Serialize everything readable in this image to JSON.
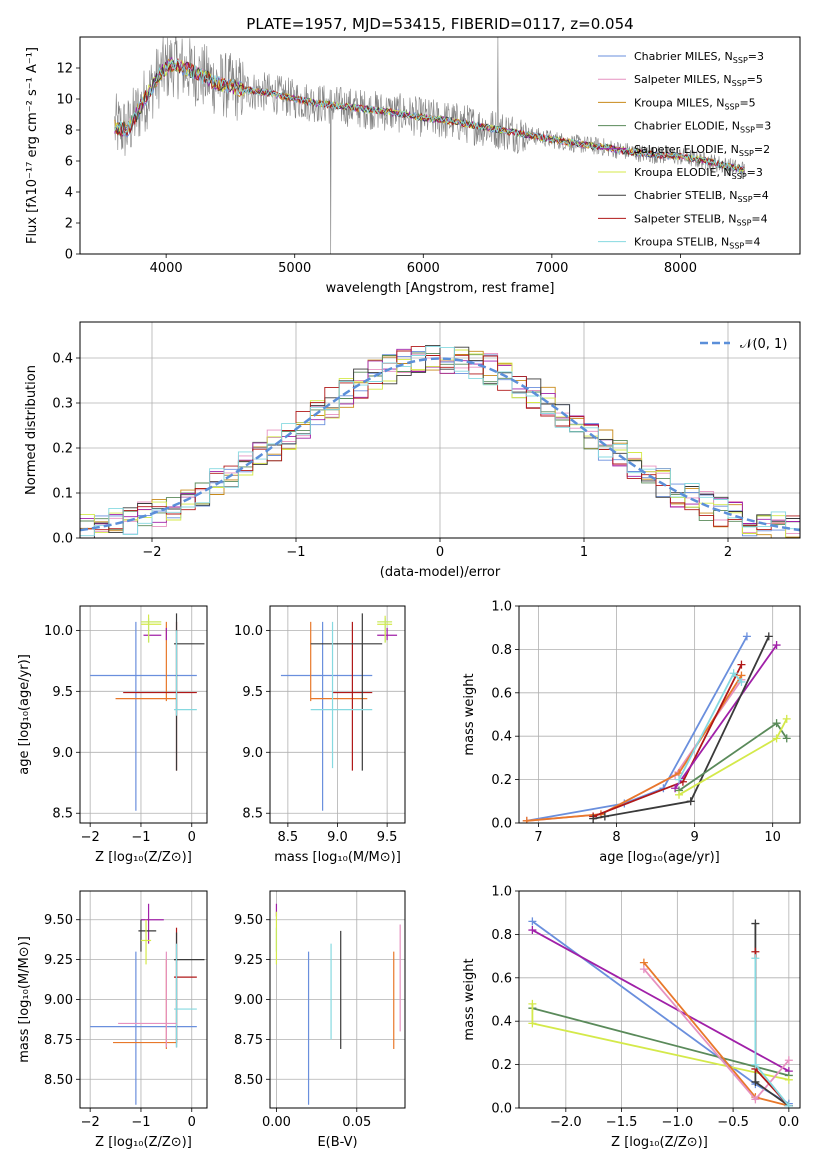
{
  "figure": {
    "title": "PLATE=1957, MJD=53415, FIBERID=0117, z=0.054"
  },
  "colors": {
    "data": "#808080",
    "series": [
      "#6a8fdd",
      "#e691c0",
      "#c88a1a",
      "#5a8a5a",
      "#a020a8",
      "#d4e94a",
      "#3a3a3a",
      "#b01818",
      "#86d9e0"
    ],
    "extra": [
      "#e8782a",
      "#c8e860",
      "#606060"
    ]
  },
  "models": [
    {
      "name": "Chabrier MILES",
      "nssp": "3"
    },
    {
      "name": "Salpeter MILES",
      "nssp": "5"
    },
    {
      "name": "Kroupa MILES",
      "nssp": "5"
    },
    {
      "name": "Chabrier ELODIE",
      "nssp": "3"
    },
    {
      "name": "Salpeter ELODIE",
      "nssp": "2"
    },
    {
      "name": "Kroupa ELODIE",
      "nssp": "3"
    },
    {
      "name": "Chabrier STELIB",
      "nssp": "4"
    },
    {
      "name": "Salpeter STELIB",
      "nssp": "4"
    },
    {
      "name": "Kroupa STELIB",
      "nssp": "4"
    }
  ],
  "chart_data": [
    {
      "id": "spectrum",
      "type": "line",
      "xlabel": "wavelength [Angstrom, rest frame]",
      "ylabel": "Flux [fλ10⁻¹⁷ erg cm⁻² s⁻¹ A⁻¹]",
      "xlim": [
        3330,
        8930
      ],
      "ylim": [
        0,
        14
      ],
      "xticks": [
        "4000",
        "5000",
        "6000",
        "7000",
        "8000"
      ],
      "xtick_values": [
        4000,
        5000,
        6000,
        7000,
        8000
      ],
      "yticks": [
        "0",
        "2",
        "4",
        "6",
        "8",
        "10",
        "12"
      ],
      "ytick_values": [
        0,
        2,
        4,
        6,
        8,
        10,
        12
      ],
      "continuum": {
        "x": [
          3600,
          3700,
          3850,
          3950,
          4050,
          4200,
          4400,
          4600,
          4800,
          5000,
          5200,
          5400,
          5600,
          5800,
          6000,
          6200,
          6400,
          6600,
          6800,
          7000,
          7200,
          7400,
          7600,
          7800,
          8000,
          8200,
          8400,
          8500
        ],
        "y": [
          8.2,
          8.0,
          10.2,
          11.6,
          12.3,
          11.8,
          11.0,
          10.6,
          10.4,
          10.0,
          9.7,
          9.5,
          9.3,
          9.1,
          8.8,
          8.6,
          8.3,
          8.0,
          7.7,
          7.4,
          7.1,
          6.9,
          6.6,
          6.4,
          6.3,
          6.0,
          5.6,
          5.4
        ]
      },
      "legend": "top-right"
    },
    {
      "id": "residuals",
      "type": "bar",
      "xlabel": "(data-model)/error",
      "ylabel": "Normed distribution",
      "xlim": [
        -2.5,
        2.5
      ],
      "ylim": [
        0,
        0.48
      ],
      "xticks": [
        "−2",
        "−1",
        "0",
        "1",
        "2"
      ],
      "xtick_values": [
        -2,
        -1,
        0,
        1,
        2
      ],
      "yticks": [
        "0.0",
        "0.1",
        "0.2",
        "0.3",
        "0.4"
      ],
      "ytick_values": [
        0,
        0.1,
        0.2,
        0.3,
        0.4
      ],
      "bin_width": 0.1,
      "gaussian_label": "𝒩(0, 1)",
      "legend": "top-right"
    },
    {
      "id": "age-Z",
      "type": "scatter",
      "xlabel": "Z [log₁₀(Z/Z⊙)]",
      "ylabel": "age  [log₁₀(age/yr)]",
      "xlim": [
        -2.2,
        0.3
      ],
      "ylim": [
        8.42,
        10.2
      ],
      "xticks": [
        "−2",
        "−1",
        "0"
      ],
      "xtick_values": [
        -2,
        -1,
        0
      ],
      "yticks": [
        "8.5",
        "9.0",
        "9.5",
        "10.0"
      ],
      "ytick_values": [
        8.5,
        9.0,
        9.5,
        10.0
      ],
      "points": [
        {
          "c": 0,
          "x": -1.1,
          "xlo": -2.0,
          "xhi": 0.1,
          "y": 9.63,
          "ylo": 8.52,
          "yhi": 10.07
        },
        {
          "c": 9,
          "x": -0.5,
          "xlo": -1.5,
          "xhi": -0.3,
          "y": 9.44,
          "ylo": 9.42,
          "yhi": 10.07
        },
        {
          "c": 7,
          "x": -0.3,
          "xlo": -1.35,
          "xhi": 0.1,
          "y": 9.49,
          "ylo": 8.85,
          "yhi": 10.07
        },
        {
          "c": 6,
          "x": -0.3,
          "xlo": -0.35,
          "xhi": 0.25,
          "y": 9.89,
          "ylo": 8.85,
          "yhi": 10.14
        },
        {
          "c": 8,
          "x": -0.3,
          "xlo": -0.35,
          "xhi": 0.1,
          "y": 9.35,
          "ylo": 9.3,
          "yhi": 10.0
        },
        {
          "c": 4,
          "x": -0.5,
          "xlo": -0.95,
          "xhi": -0.6,
          "y": 9.96,
          "ylo": 9.92,
          "yhi": 10.02
        },
        {
          "c": 5,
          "x": -0.85,
          "xlo": -1.0,
          "xhi": -0.6,
          "y": 10.05,
          "ylo": 9.9,
          "yhi": 10.13
        },
        {
          "c": 10,
          "x": -0.85,
          "xlo": -1.0,
          "xhi": -0.6,
          "y": 10.07,
          "ylo": 9.9,
          "yhi": 10.1
        }
      ]
    },
    {
      "id": "age-mass",
      "type": "scatter",
      "xlabel": "mass [log₁₀(M/M⊙)]",
      "ylabel": "",
      "xlim": [
        8.32,
        9.68
      ],
      "ylim": [
        8.42,
        10.2
      ],
      "xticks": [
        "8.5",
        "9.0",
        "9.5"
      ],
      "xtick_values": [
        8.5,
        9.0,
        9.5
      ],
      "yticks": [
        "8.5",
        "9.0",
        "9.5",
        "10.0"
      ],
      "ytick_values": [
        8.5,
        9.0,
        9.5,
        10.0
      ],
      "points": [
        {
          "c": 0,
          "x": 8.85,
          "xlo": 8.43,
          "xhi": 9.35,
          "y": 9.63,
          "ylo": 8.52,
          "yhi": 10.07
        },
        {
          "c": 9,
          "x": 8.73,
          "xlo": 8.73,
          "xhi": 9.3,
          "y": 9.44,
          "ylo": 9.42,
          "yhi": 10.07
        },
        {
          "c": 7,
          "x": 9.15,
          "xlo": 8.95,
          "xhi": 9.35,
          "y": 9.49,
          "ylo": 8.85,
          "yhi": 10.07
        },
        {
          "c": 6,
          "x": 9.25,
          "xlo": 8.73,
          "xhi": 9.45,
          "y": 9.89,
          "ylo": 8.85,
          "yhi": 10.14
        },
        {
          "c": 8,
          "x": 8.95,
          "xlo": 8.73,
          "xhi": 9.35,
          "y": 9.35,
          "ylo": 8.87,
          "yhi": 10.07
        },
        {
          "c": 4,
          "x": 9.5,
          "xlo": 9.4,
          "xhi": 9.6,
          "y": 9.96,
          "ylo": 9.92,
          "yhi": 10.02
        },
        {
          "c": 5,
          "x": 9.48,
          "xlo": 9.4,
          "xhi": 9.55,
          "y": 10.05,
          "ylo": 9.9,
          "yhi": 10.12
        },
        {
          "c": 10,
          "x": 9.48,
          "xlo": 9.4,
          "xhi": 9.55,
          "y": 10.07,
          "ylo": 9.9,
          "yhi": 10.1
        }
      ]
    },
    {
      "id": "mass-Z",
      "type": "scatter",
      "xlabel": "Z [log₁₀(Z/Z⊙)]",
      "ylabel": "mass [log₁₀(M/M⊙)]",
      "xlim": [
        -2.2,
        0.3
      ],
      "ylim": [
        8.32,
        9.68
      ],
      "xticks": [
        "−2",
        "−1",
        "0"
      ],
      "xtick_values": [
        -2,
        -1,
        0
      ],
      "yticks": [
        "8.50",
        "8.75",
        "9.00",
        "9.25",
        "9.50"
      ],
      "ytick_values": [
        8.5,
        8.75,
        9.0,
        9.25,
        9.5
      ],
      "points": [
        {
          "c": 0,
          "x": -1.1,
          "xlo": -2.0,
          "xhi": 0.1,
          "y": 8.83,
          "ylo": 8.34,
          "yhi": 9.3
        },
        {
          "c": 9,
          "x": -0.5,
          "xlo": -1.55,
          "xhi": -0.3,
          "y": 8.73,
          "ylo": 8.69,
          "yhi": 9.25
        },
        {
          "c": 7,
          "x": -0.3,
          "xlo": -0.35,
          "xhi": 0.1,
          "y": 9.14,
          "ylo": 8.73,
          "yhi": 9.45
        },
        {
          "c": 6,
          "x": -0.3,
          "xlo": -0.35,
          "xhi": 0.25,
          "y": 9.25,
          "ylo": 8.7,
          "yhi": 9.42
        },
        {
          "c": 8,
          "x": -0.3,
          "xlo": -0.35,
          "xhi": 0.1,
          "y": 8.94,
          "ylo": 8.7,
          "yhi": 9.35
        },
        {
          "c": 1,
          "x": -0.5,
          "xlo": -1.45,
          "xhi": -0.3,
          "y": 8.85,
          "ylo": 8.7,
          "yhi": 9.3
        },
        {
          "c": 4,
          "x": -0.85,
          "xlo": -1.0,
          "xhi": -0.55,
          "y": 9.5,
          "ylo": 9.35,
          "yhi": 9.6
        },
        {
          "c": 6,
          "x": -1.0,
          "xlo": -1.05,
          "xhi": -0.7,
          "y": 9.43,
          "ylo": 9.3,
          "yhi": 9.5
        },
        {
          "c": 5,
          "x": -0.9,
          "xlo": -1.0,
          "xhi": -0.8,
          "y": 9.37,
          "ylo": 9.22,
          "yhi": 9.5
        }
      ]
    },
    {
      "id": "mass-ebv",
      "type": "scatter",
      "xlabel": "E(B-V)",
      "ylabel": "",
      "xlim": [
        -0.004,
        0.08
      ],
      "ylim": [
        8.32,
        9.68
      ],
      "xticks": [
        "0.00",
        "0.05"
      ],
      "xtick_values": [
        0,
        0.05
      ],
      "yticks": [
        "8.50",
        "8.75",
        "9.00",
        "9.25",
        "9.50"
      ],
      "ytick_values": [
        8.5,
        8.75,
        9.0,
        9.25,
        9.5
      ],
      "points": [
        {
          "c": 0,
          "x": 0.02,
          "ylo": 8.34,
          "yhi": 9.3
        },
        {
          "c": 8,
          "x": 0.034,
          "ylo": 8.75,
          "yhi": 9.35
        },
        {
          "c": 6,
          "x": 0.04,
          "ylo": 8.69,
          "yhi": 9.43
        },
        {
          "c": 9,
          "x": 0.073,
          "ylo": 8.69,
          "yhi": 9.3
        },
        {
          "c": 1,
          "x": 0.077,
          "ylo": 8.8,
          "yhi": 9.47
        },
        {
          "c": 4,
          "x": 0.0,
          "ylo": 9.52,
          "yhi": 9.6
        },
        {
          "c": 5,
          "x": 0.0,
          "ylo": 9.22,
          "yhi": 9.55
        },
        {
          "c": 10,
          "x": 0.0,
          "ylo": 9.3,
          "yhi": 9.45
        }
      ]
    },
    {
      "id": "weight-age",
      "type": "line",
      "xlabel": "age  [log₁₀(age/yr)]",
      "ylabel": "mass weight",
      "xlim": [
        6.75,
        10.35
      ],
      "ylim": [
        0,
        1.0
      ],
      "xticks": [
        "7",
        "8",
        "9",
        "10"
      ],
      "xtick_values": [
        7,
        8,
        9,
        10
      ],
      "yticks": [
        "0.0",
        "0.2",
        "0.4",
        "0.6",
        "0.8",
        "1.0"
      ],
      "ytick_values": [
        0,
        0.2,
        0.4,
        0.6,
        0.8,
        1.0
      ],
      "series": [
        {
          "c": 0,
          "x": [
            6.85,
            8.1,
            8.6,
            9.67
          ],
          "y": [
            0.01,
            0.09,
            0.16,
            0.86
          ]
        },
        {
          "c": 1,
          "x": [
            6.85,
            7.8,
            8.75,
            9.6
          ],
          "y": [
            0.01,
            0.04,
            0.22,
            0.66
          ]
        },
        {
          "c": 9,
          "x": [
            6.85,
            7.8,
            8.8,
            9.6
          ],
          "y": [
            0.01,
            0.04,
            0.23,
            0.68
          ]
        },
        {
          "c": 7,
          "x": [
            7.7,
            8.85,
            9.6
          ],
          "y": [
            0.03,
            0.19,
            0.73
          ]
        },
        {
          "c": 4,
          "x": [
            8.75,
            10.05
          ],
          "y": [
            0.16,
            0.82
          ]
        },
        {
          "c": 6,
          "x": [
            7.7,
            7.85,
            8.95,
            9.95
          ],
          "y": [
            0.02,
            0.03,
            0.1,
            0.86
          ]
        },
        {
          "c": 3,
          "x": [
            8.8,
            10.05,
            10.18
          ],
          "y": [
            0.15,
            0.46,
            0.39
          ]
        },
        {
          "c": 5,
          "x": [
            8.8,
            10.05,
            10.18
          ],
          "y": [
            0.13,
            0.39,
            0.48
          ]
        },
        {
          "c": 8,
          "x": [
            8.8,
            9.5,
            9.6
          ],
          "y": [
            0.2,
            0.69,
            0.65
          ]
        }
      ]
    },
    {
      "id": "weight-Z",
      "type": "line",
      "xlabel": "Z [log₁₀(Z/Z⊙)]",
      "ylabel": "mass weight",
      "xlim": [
        -2.42,
        0.1
      ],
      "ylim": [
        0,
        1.0
      ],
      "xticks": [
        "−2.0",
        "−1.5",
        "−1.0",
        "−0.5",
        "0.0"
      ],
      "xtick_values": [
        -2.0,
        -1.5,
        -1.0,
        -0.5,
        0.0
      ],
      "yticks": [
        "0.0",
        "0.2",
        "0.4",
        "0.6",
        "0.8",
        "1.0"
      ],
      "ytick_values": [
        0,
        0.2,
        0.4,
        0.6,
        0.8,
        1.0
      ],
      "series": [
        {
          "c": 0,
          "x": [
            -2.3,
            -0.3,
            0.0
          ],
          "y": [
            0.86,
            0.11,
            0.02
          ]
        },
        {
          "c": 4,
          "x": [
            -2.3,
            0.0
          ],
          "y": [
            0.82,
            0.17
          ]
        },
        {
          "c": 3,
          "x": [
            -2.3,
            0.0
          ],
          "y": [
            0.46,
            0.15
          ]
        },
        {
          "c": 5,
          "x": [
            -2.3,
            -2.3,
            0.0
          ],
          "y": [
            0.48,
            0.39,
            0.13
          ]
        },
        {
          "c": 9,
          "x": [
            -1.3,
            -0.3,
            0.0
          ],
          "y": [
            0.67,
            0.05,
            0.01
          ]
        },
        {
          "c": 1,
          "x": [
            -1.3,
            -0.3,
            0.0
          ],
          "y": [
            0.64,
            0.04,
            0.22
          ]
        },
        {
          "c": 6,
          "x": [
            -0.3,
            -0.3,
            0.0
          ],
          "y": [
            0.85,
            0.12,
            0.01
          ]
        },
        {
          "c": 7,
          "x": [
            -0.3,
            -0.3,
            0.0
          ],
          "y": [
            0.72,
            0.18,
            0.01
          ]
        },
        {
          "c": 8,
          "x": [
            -0.3,
            -0.3,
            0.0
          ],
          "y": [
            0.69,
            0.2,
            0.01
          ]
        }
      ]
    }
  ]
}
